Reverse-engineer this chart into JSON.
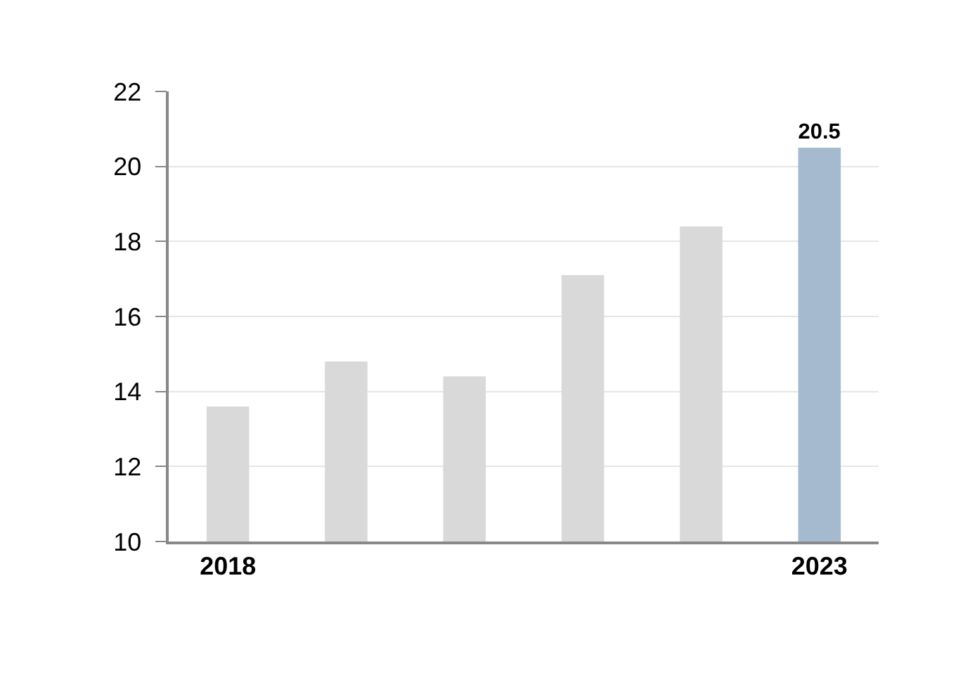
{
  "chart_data": {
    "type": "bar",
    "categories": [
      "2018",
      null,
      null,
      null,
      null,
      "2023"
    ],
    "values": [
      13.6,
      14.8,
      14.4,
      17.1,
      18.4,
      20.5
    ],
    "colors": [
      "#d9d9d9",
      "#d9d9d9",
      "#d9d9d9",
      "#d9d9d9",
      "#d9d9d9",
      "#a5b9cf"
    ],
    "value_labels": [
      null,
      null,
      null,
      null,
      null,
      "20.5"
    ],
    "ylim": [
      10,
      22
    ],
    "yticks": [
      10,
      12,
      14,
      16,
      18,
      20,
      22
    ],
    "grid": "y"
  }
}
